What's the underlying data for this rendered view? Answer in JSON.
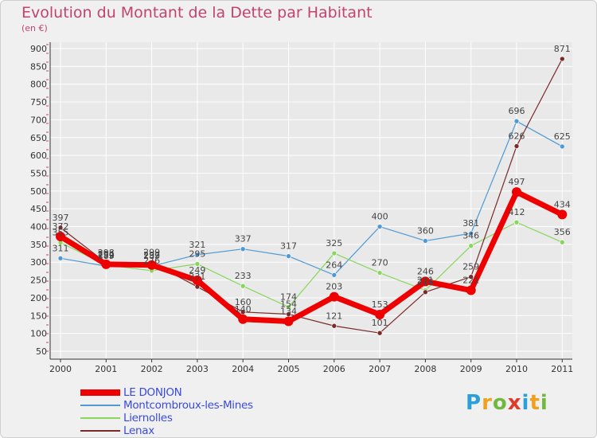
{
  "title": "Evolution du Montant de la Dette par Habitant",
  "unit": "(en €)",
  "logo": [
    "P",
    "r",
    "o",
    "x",
    "i",
    "t",
    "i"
  ],
  "colors": {
    "title": "#c2436e",
    "axis": "#333333",
    "grid": "#ffffff",
    "legend_text": "#3a4adf"
  },
  "chart_data": {
    "type": "line",
    "title": "Evolution du Montant de la Dette par Habitant",
    "ylabel": "(en €)",
    "xlabel": "",
    "x": [
      "2000",
      "2001",
      "2002",
      "2003",
      "2004",
      "2005",
      "2006",
      "2007",
      "2008",
      "2009",
      "2010",
      "2011"
    ],
    "ylim": [
      50,
      900
    ],
    "yticks": [
      50,
      100,
      150,
      200,
      250,
      300,
      350,
      400,
      450,
      500,
      550,
      600,
      650,
      700,
      750,
      800,
      850,
      900
    ],
    "grid": true,
    "legend_position": "bottom-left",
    "series": [
      {
        "name": "LE DONJON",
        "color": "#ee0000",
        "values": [
          372,
          294,
          292,
          249,
          140,
          134,
          203,
          153,
          246,
          221,
          497,
          434
        ]
      },
      {
        "name": "Montcombroux-les-Mines",
        "color": "#4f9ad4",
        "values": [
          311,
          289,
          289,
          321,
          337,
          317,
          264,
          400,
          360,
          381,
          696,
          625
        ]
      },
      {
        "name": "Liernolles",
        "color": "#88d65c",
        "values": [
          355,
          292,
          276,
          295,
          233,
          174,
          325,
          270,
          221,
          346,
          412,
          356
        ]
      },
      {
        "name": "Lenax",
        "color": "#7b2a2a",
        "values": [
          397,
          298,
          299,
          231,
          160,
          154,
          121,
          101,
          216,
          259,
          626,
          871
        ]
      }
    ],
    "labels": [
      [
        "372",
        "294",
        "292",
        "249",
        "140",
        "134",
        "203",
        "153",
        "246",
        "221",
        "497",
        "434"
      ],
      [
        "311",
        "289",
        "289",
        "321",
        "337",
        "317",
        "264",
        "400",
        "360",
        "381",
        "696",
        "625"
      ],
      [
        "355",
        "292",
        "276",
        "295",
        "233",
        "174",
        "325",
        "270",
        "221",
        "346",
        "412",
        "356"
      ],
      [
        "397",
        "298",
        "299",
        "231",
        "160",
        "154",
        "121",
        "101",
        "216",
        "259",
        "626",
        "871"
      ]
    ]
  }
}
